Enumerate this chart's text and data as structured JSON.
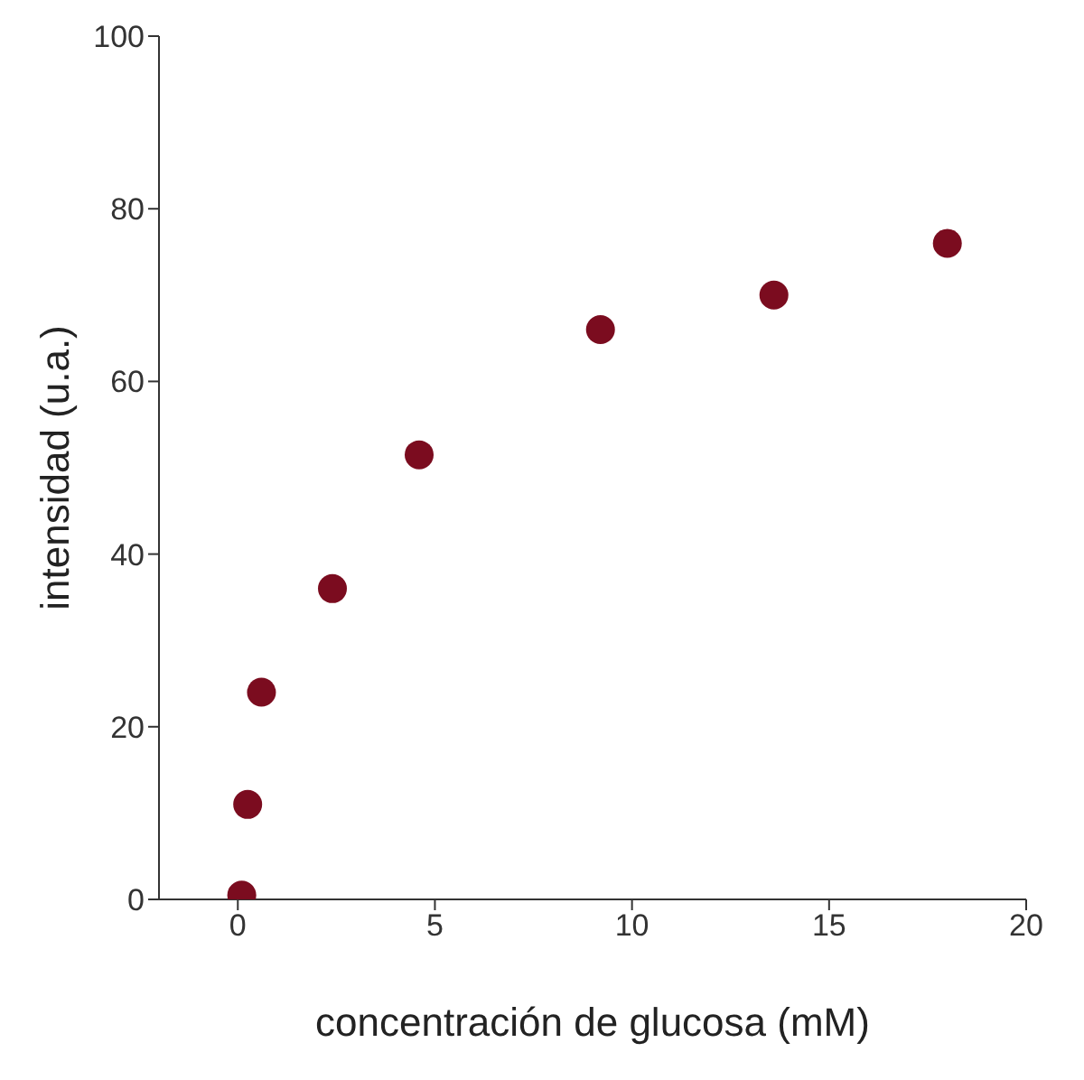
{
  "chart_data": {
    "type": "scatter",
    "xlabel": "concentración de glucosa (mM)",
    "ylabel": "intensidad (u.a.)",
    "x": [
      0.1,
      0.25,
      0.6,
      2.4,
      4.6,
      9.2,
      13.6,
      18
    ],
    "series": [
      {
        "color": "#7b0c1f",
        "values": [
          0.5,
          11,
          24,
          36,
          51.5,
          66,
          70,
          76
        ]
      }
    ],
    "xlim": [
      -2,
      20
    ],
    "xticks": [
      0,
      5,
      10,
      15,
      20
    ],
    "ylim": [
      0,
      100
    ],
    "yticks": [
      0,
      20,
      40,
      60,
      80,
      100
    ],
    "marker": "circle",
    "grid": false,
    "legend": false
  }
}
